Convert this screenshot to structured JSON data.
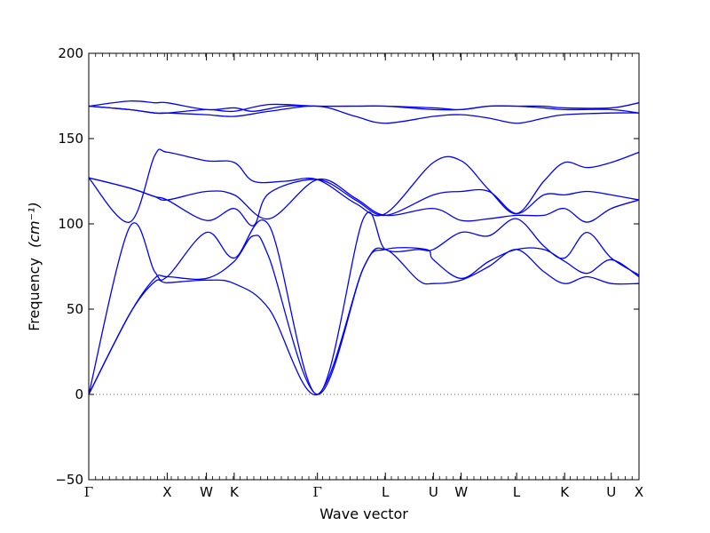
{
  "chart_data": {
    "type": "line",
    "xlabel": "Wave vector",
    "ylabel": "Frequency",
    "ylabel_unit": "(cm⁻¹)",
    "ylim": [
      -50,
      200
    ],
    "yticks": [
      -50,
      0,
      50,
      100,
      150,
      200
    ],
    "grid": false,
    "line_color": "#0000ff",
    "zero_line": {
      "value": 0,
      "style": "dotted",
      "color": "#555555"
    },
    "x_ticks": [
      {
        "label": "Γ",
        "x": 0.0
      },
      {
        "label": "X",
        "x": 1.0
      },
      {
        "label": "W",
        "x": 1.5
      },
      {
        "label": "K",
        "x": 1.854
      },
      {
        "label": "Γ",
        "x": 2.915
      },
      {
        "label": "L",
        "x": 3.781
      },
      {
        "label": "U",
        "x": 4.393
      },
      {
        "label": "W",
        "x": 4.747
      },
      {
        "label": "L",
        "x": 5.454
      },
      {
        "label": "K",
        "x": 6.066
      },
      {
        "label": "U",
        "x": 6.66
      },
      {
        "label": "X",
        "x": 7.014
      }
    ],
    "xlim": [
      0,
      7.014
    ],
    "series": [
      {
        "values": [
          [
            0,
            0
          ],
          [
            0.52,
            47
          ],
          [
            0.84,
            66
          ],
          [
            1.0,
            65.5
          ],
          [
            1.5,
            67
          ],
          [
            1.854,
            65
          ],
          [
            2.3,
            50
          ],
          [
            2.915,
            0
          ],
          [
            3.5,
            74
          ],
          [
            3.781,
            85
          ],
          [
            4.2,
            67
          ],
          [
            4.393,
            65
          ],
          [
            4.747,
            67
          ],
          [
            5.1,
            75
          ],
          [
            5.454,
            85
          ],
          [
            5.8,
            72
          ],
          [
            6.066,
            65
          ],
          [
            6.35,
            69
          ],
          [
            6.66,
            65
          ],
          [
            7.014,
            65
          ]
        ]
      },
      {
        "values": [
          [
            0,
            0
          ],
          [
            0.52,
            47
          ],
          [
            0.84,
            68
          ],
          [
            1.0,
            69
          ],
          [
            1.5,
            68
          ],
          [
            1.854,
            78
          ],
          [
            2.1,
            93
          ],
          [
            2.3,
            80
          ],
          [
            2.915,
            0
          ],
          [
            3.5,
            74
          ],
          [
            3.781,
            85
          ],
          [
            4.3,
            85
          ],
          [
            4.393,
            79
          ],
          [
            4.747,
            68
          ],
          [
            5.1,
            78
          ],
          [
            5.454,
            85
          ],
          [
            5.8,
            85
          ],
          [
            6.066,
            78
          ],
          [
            6.35,
            71
          ],
          [
            6.66,
            79
          ],
          [
            7.014,
            69
          ]
        ]
      },
      {
        "values": [
          [
            0,
            0
          ],
          [
            0.52,
            98
          ],
          [
            0.84,
            72
          ],
          [
            1.0,
            69
          ],
          [
            1.5,
            95
          ],
          [
            1.854,
            80
          ],
          [
            2.3,
            99
          ],
          [
            2.915,
            0
          ],
          [
            3.5,
            103
          ],
          [
            3.781,
            85
          ],
          [
            4.2,
            85
          ],
          [
            4.393,
            85
          ],
          [
            4.747,
            95
          ],
          [
            5.1,
            93
          ],
          [
            5.454,
            103
          ],
          [
            5.8,
            87
          ],
          [
            6.066,
            80
          ],
          [
            6.35,
            95
          ],
          [
            6.66,
            80
          ],
          [
            7.014,
            70
          ]
        ]
      },
      {
        "values": [
          [
            0,
            127
          ],
          [
            0.52,
            101
          ],
          [
            0.84,
            140
          ],
          [
            1.0,
            142
          ],
          [
            1.5,
            137
          ],
          [
            1.854,
            136
          ],
          [
            2.1,
            125
          ],
          [
            2.5,
            125
          ],
          [
            2.915,
            126
          ],
          [
            3.4,
            112
          ],
          [
            3.781,
            106
          ],
          [
            4.393,
            136
          ],
          [
            4.747,
            137
          ],
          [
            5.1,
            120
          ],
          [
            5.454,
            106
          ],
          [
            5.8,
            125
          ],
          [
            6.066,
            136
          ],
          [
            6.35,
            133
          ],
          [
            6.66,
            136
          ],
          [
            7.014,
            142
          ]
        ]
      },
      {
        "values": [
          [
            0,
            127
          ],
          [
            0.52,
            121
          ],
          [
            0.84,
            116
          ],
          [
            1.0,
            114
          ],
          [
            1.5,
            102
          ],
          [
            1.854,
            109
          ],
          [
            2.1,
            99
          ],
          [
            2.3,
            118
          ],
          [
            2.915,
            126
          ],
          [
            3.4,
            114
          ],
          [
            3.781,
            105
          ],
          [
            4.393,
            117
          ],
          [
            4.747,
            119
          ],
          [
            5.1,
            119
          ],
          [
            5.454,
            106
          ],
          [
            5.8,
            117
          ],
          [
            6.066,
            117
          ],
          [
            6.35,
            119
          ],
          [
            6.66,
            117
          ],
          [
            7.014,
            114
          ]
        ]
      },
      {
        "values": [
          [
            0,
            127
          ],
          [
            0.52,
            121
          ],
          [
            0.84,
            116
          ],
          [
            1.0,
            114
          ],
          [
            1.5,
            119
          ],
          [
            1.854,
            117
          ],
          [
            2.3,
            103
          ],
          [
            2.915,
            126
          ],
          [
            3.4,
            115
          ],
          [
            3.781,
            105
          ],
          [
            4.393,
            109
          ],
          [
            4.747,
            102
          ],
          [
            5.1,
            103
          ],
          [
            5.454,
            105
          ],
          [
            5.8,
            105
          ],
          [
            6.066,
            109
          ],
          [
            6.35,
            101
          ],
          [
            6.66,
            109
          ],
          [
            7.014,
            114
          ]
        ]
      },
      {
        "values": [
          [
            0,
            169
          ],
          [
            0.52,
            172
          ],
          [
            0.84,
            171
          ],
          [
            1.0,
            171
          ],
          [
            1.5,
            167
          ],
          [
            1.854,
            168
          ],
          [
            2.1,
            166
          ],
          [
            2.5,
            169
          ],
          [
            2.915,
            169
          ],
          [
            3.4,
            169
          ],
          [
            3.781,
            169
          ],
          [
            4.393,
            168
          ],
          [
            4.747,
            167
          ],
          [
            5.1,
            169
          ],
          [
            5.454,
            169
          ],
          [
            5.8,
            169
          ],
          [
            6.066,
            168
          ],
          [
            6.66,
            168
          ],
          [
            7.014,
            171
          ]
        ]
      },
      {
        "values": [
          [
            0,
            169
          ],
          [
            0.52,
            167
          ],
          [
            0.84,
            165
          ],
          [
            1.0,
            165
          ],
          [
            1.5,
            167
          ],
          [
            1.854,
            166
          ],
          [
            2.3,
            170
          ],
          [
            2.915,
            169
          ],
          [
            3.4,
            169
          ],
          [
            3.781,
            169
          ],
          [
            4.393,
            167
          ],
          [
            4.747,
            167
          ],
          [
            5.1,
            169
          ],
          [
            5.454,
            169
          ],
          [
            5.8,
            168
          ],
          [
            6.066,
            167
          ],
          [
            6.66,
            167
          ],
          [
            7.014,
            165
          ]
        ]
      },
      {
        "values": [
          [
            0,
            169
          ],
          [
            0.52,
            167
          ],
          [
            0.84,
            165
          ],
          [
            1.0,
            165
          ],
          [
            1.5,
            164
          ],
          [
            1.854,
            163
          ],
          [
            2.3,
            166
          ],
          [
            2.915,
            169
          ],
          [
            3.4,
            163
          ],
          [
            3.781,
            159
          ],
          [
            4.393,
            163
          ],
          [
            4.747,
            164
          ],
          [
            5.1,
            162
          ],
          [
            5.454,
            159
          ],
          [
            5.8,
            162
          ],
          [
            6.066,
            164
          ],
          [
            6.66,
            165
          ],
          [
            7.014,
            165
          ]
        ]
      }
    ]
  }
}
